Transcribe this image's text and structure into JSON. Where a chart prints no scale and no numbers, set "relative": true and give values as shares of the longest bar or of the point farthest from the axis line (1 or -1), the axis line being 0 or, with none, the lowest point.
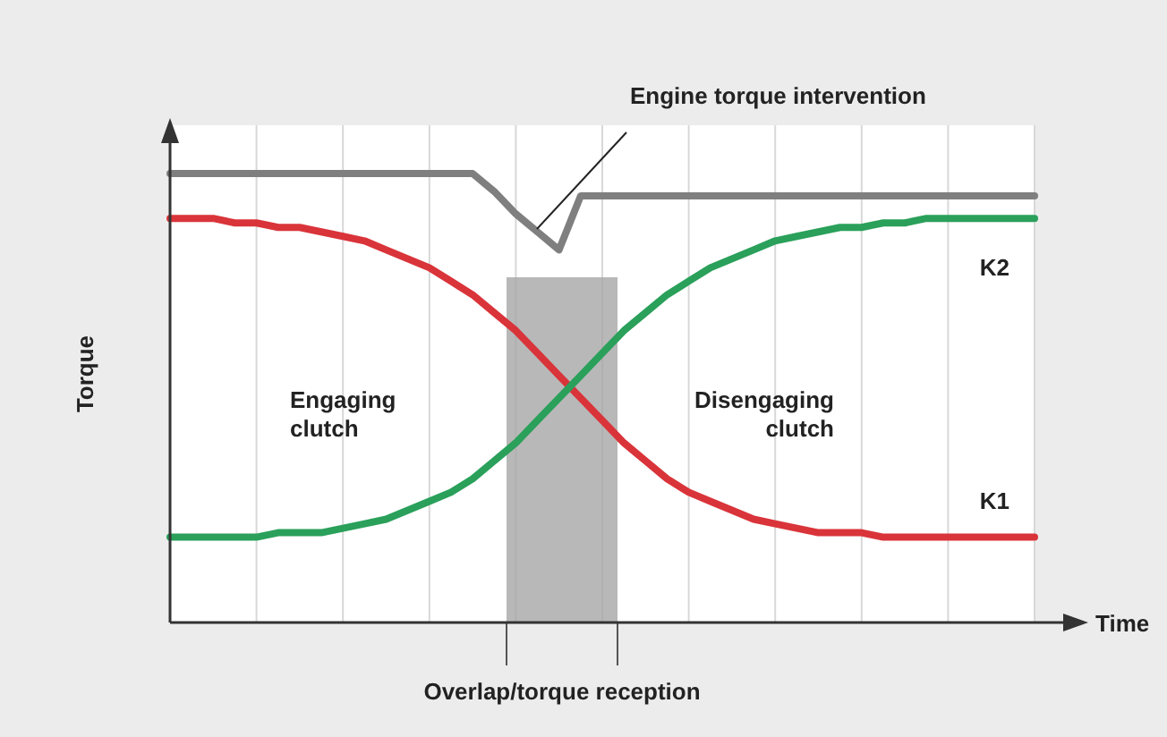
{
  "chart_data": {
    "type": "line",
    "relative": true,
    "xlabel": "Time",
    "ylabel": "Torque",
    "grid": "x",
    "categories": [
      null,
      null,
      null,
      null,
      null,
      null,
      null,
      null,
      null,
      null,
      null,
      null,
      null,
      null,
      null,
      null,
      null,
      null,
      null,
      null,
      null,
      null,
      null,
      null,
      null,
      null,
      null,
      null,
      null,
      null,
      null,
      null,
      null,
      null,
      null,
      null,
      null,
      null,
      null,
      null,
      null
    ],
    "series": [
      {
        "color": "#7f7f7f",
        "values": [
          1,
          1,
          1,
          1,
          1,
          1,
          1,
          1,
          1,
          1,
          1,
          1,
          1,
          1,
          1,
          0.96,
          0.91,
          0.87,
          0.83,
          0.95,
          0.95,
          0.95,
          0.95,
          0.95,
          0.95,
          0.95,
          0.95,
          0.95,
          0.95,
          0.95,
          0.95,
          0.95,
          0.95,
          0.95,
          0.95,
          0.95,
          0.95,
          0.95,
          0.95,
          0.95,
          0.95
        ]
      },
      {
        "name": "K1",
        "color": "#d9343a",
        "values": [
          0.9,
          0.9,
          0.9,
          0.89,
          0.89,
          0.88,
          0.88,
          0.87,
          0.86,
          0.85,
          0.83,
          0.81,
          0.79,
          0.76,
          0.73,
          0.69,
          0.65,
          0.6,
          0.55,
          0.5,
          0.45,
          0.4,
          0.36,
          0.32,
          0.29,
          0.27,
          0.25,
          0.23,
          0.22,
          0.21,
          0.2,
          0.2,
          0.2,
          0.19,
          0.19,
          0.19,
          0.19,
          0.19,
          0.19,
          0.19,
          0.19
        ]
      },
      {
        "name": "K2",
        "color": "#2aa05a",
        "values": [
          0.19,
          0.19,
          0.19,
          0.19,
          0.19,
          0.2,
          0.2,
          0.2,
          0.21,
          0.22,
          0.23,
          0.25,
          0.27,
          0.29,
          0.32,
          0.36,
          0.4,
          0.45,
          0.5,
          0.55,
          0.6,
          0.65,
          0.69,
          0.73,
          0.76,
          0.79,
          0.81,
          0.83,
          0.85,
          0.86,
          0.87,
          0.88,
          0.88,
          0.89,
          0.89,
          0.9,
          0.9,
          0.9,
          0.9,
          0.9,
          0.9
        ]
      }
    ],
    "annotations": [
      "Engine torque intervention",
      "Engaging clutch",
      "Disengaging clutch",
      "Overlap/torque reception"
    ]
  }
}
